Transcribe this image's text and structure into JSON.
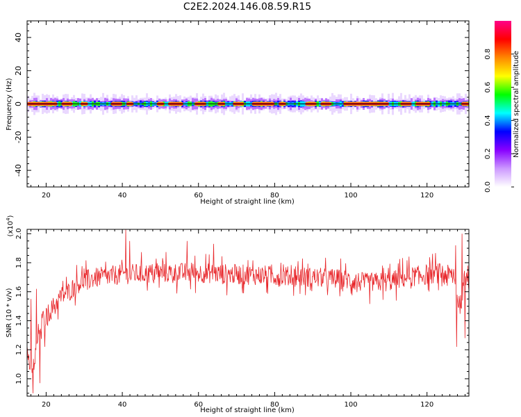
{
  "title": "C2E2.2024.146.08.59.R15",
  "chart_data": [
    {
      "type": "heatmap",
      "xlabel": "Height of straight line (km)",
      "ylabel": "Frequency (Hz)",
      "xlim": [
        15,
        131
      ],
      "ylim": [
        -50,
        50
      ],
      "xticks": [
        20,
        40,
        60,
        80,
        100,
        120
      ],
      "yticks": [
        -40,
        -20,
        0,
        20,
        40
      ],
      "colorbar": {
        "label": "Normalized spectral amplitude",
        "range": [
          0,
          1
        ],
        "ticks": [
          "0.0",
          "0.2",
          "0.4",
          "0.6",
          "0.8"
        ],
        "colors": [
          "#ffffff",
          "#cc99ff",
          "#8800ff",
          "#0000ff",
          "#00ffff",
          "#00ff00",
          "#ffff00",
          "#ff8800",
          "#ff0000",
          "#ff0088"
        ]
      },
      "ridge": {
        "frequency": 0,
        "peak_segments": [
          [
            15,
            23
          ],
          [
            24,
            27
          ],
          [
            29,
            31
          ],
          [
            37,
            40
          ],
          [
            41,
            43
          ],
          [
            49,
            51
          ],
          [
            52,
            56
          ],
          [
            59,
            62
          ],
          [
            65,
            67
          ],
          [
            69,
            72
          ],
          [
            74,
            80
          ],
          [
            81,
            83
          ],
          [
            88,
            91
          ],
          [
            92,
            95
          ],
          [
            98,
            110
          ],
          [
            113,
            116
          ],
          [
            117,
            121
          ],
          [
            129,
            131
          ]
        ]
      }
    },
    {
      "type": "line",
      "xlabel": "Height of straight line (km)",
      "ylabel": "SNR (10 * v/v)",
      "y_multiplier": "(x10",
      "y_multiplier_exp": "4",
      "y_multiplier_close": ")",
      "xlim": [
        15,
        131
      ],
      "ylim": [
        0.88,
        2.03
      ],
      "xticks": [
        20,
        40,
        60,
        80,
        100,
        120
      ],
      "yticks": [
        "1.0",
        "1.2",
        "1.4",
        "1.6",
        "1.8",
        "2.0"
      ],
      "color": "#e8262a",
      "trend": [
        [
          15,
          1.2
        ],
        [
          16,
          1.05
        ],
        [
          17,
          1.12
        ],
        [
          18,
          1.32
        ],
        [
          19,
          1.4
        ],
        [
          20,
          1.43
        ],
        [
          22,
          1.5
        ],
        [
          24,
          1.57
        ],
        [
          26,
          1.6
        ],
        [
          28,
          1.65
        ],
        [
          30,
          1.68
        ],
        [
          34,
          1.7
        ],
        [
          40,
          1.72
        ],
        [
          50,
          1.73
        ],
        [
          60,
          1.73
        ],
        [
          70,
          1.72
        ],
        [
          80,
          1.71
        ],
        [
          90,
          1.7
        ],
        [
          100,
          1.68
        ],
        [
          104,
          1.66
        ],
        [
          110,
          1.67
        ],
        [
          115,
          1.7
        ],
        [
          120,
          1.72
        ],
        [
          124,
          1.73
        ],
        [
          127,
          1.7
        ],
        [
          128,
          1.55
        ],
        [
          129,
          1.5
        ],
        [
          130,
          1.72
        ],
        [
          131,
          1.66
        ]
      ],
      "noise_amplitude": 0.07,
      "n_points": 900,
      "spikes": [
        [
          16.5,
          0.9
        ],
        [
          16,
          1.55
        ],
        [
          17.5,
          1.62
        ],
        [
          18.3,
          0.97
        ],
        [
          19.6,
          1.22
        ],
        [
          40.9,
          2.03
        ],
        [
          42,
          1.95
        ],
        [
          57,
          1.95
        ],
        [
          64,
          1.93
        ],
        [
          127.5,
          1.92
        ],
        [
          127.8,
          1.22
        ],
        [
          129.2,
          2.0
        ],
        [
          130,
          1.28
        ],
        [
          130.8,
          1.78
        ]
      ]
    }
  ]
}
